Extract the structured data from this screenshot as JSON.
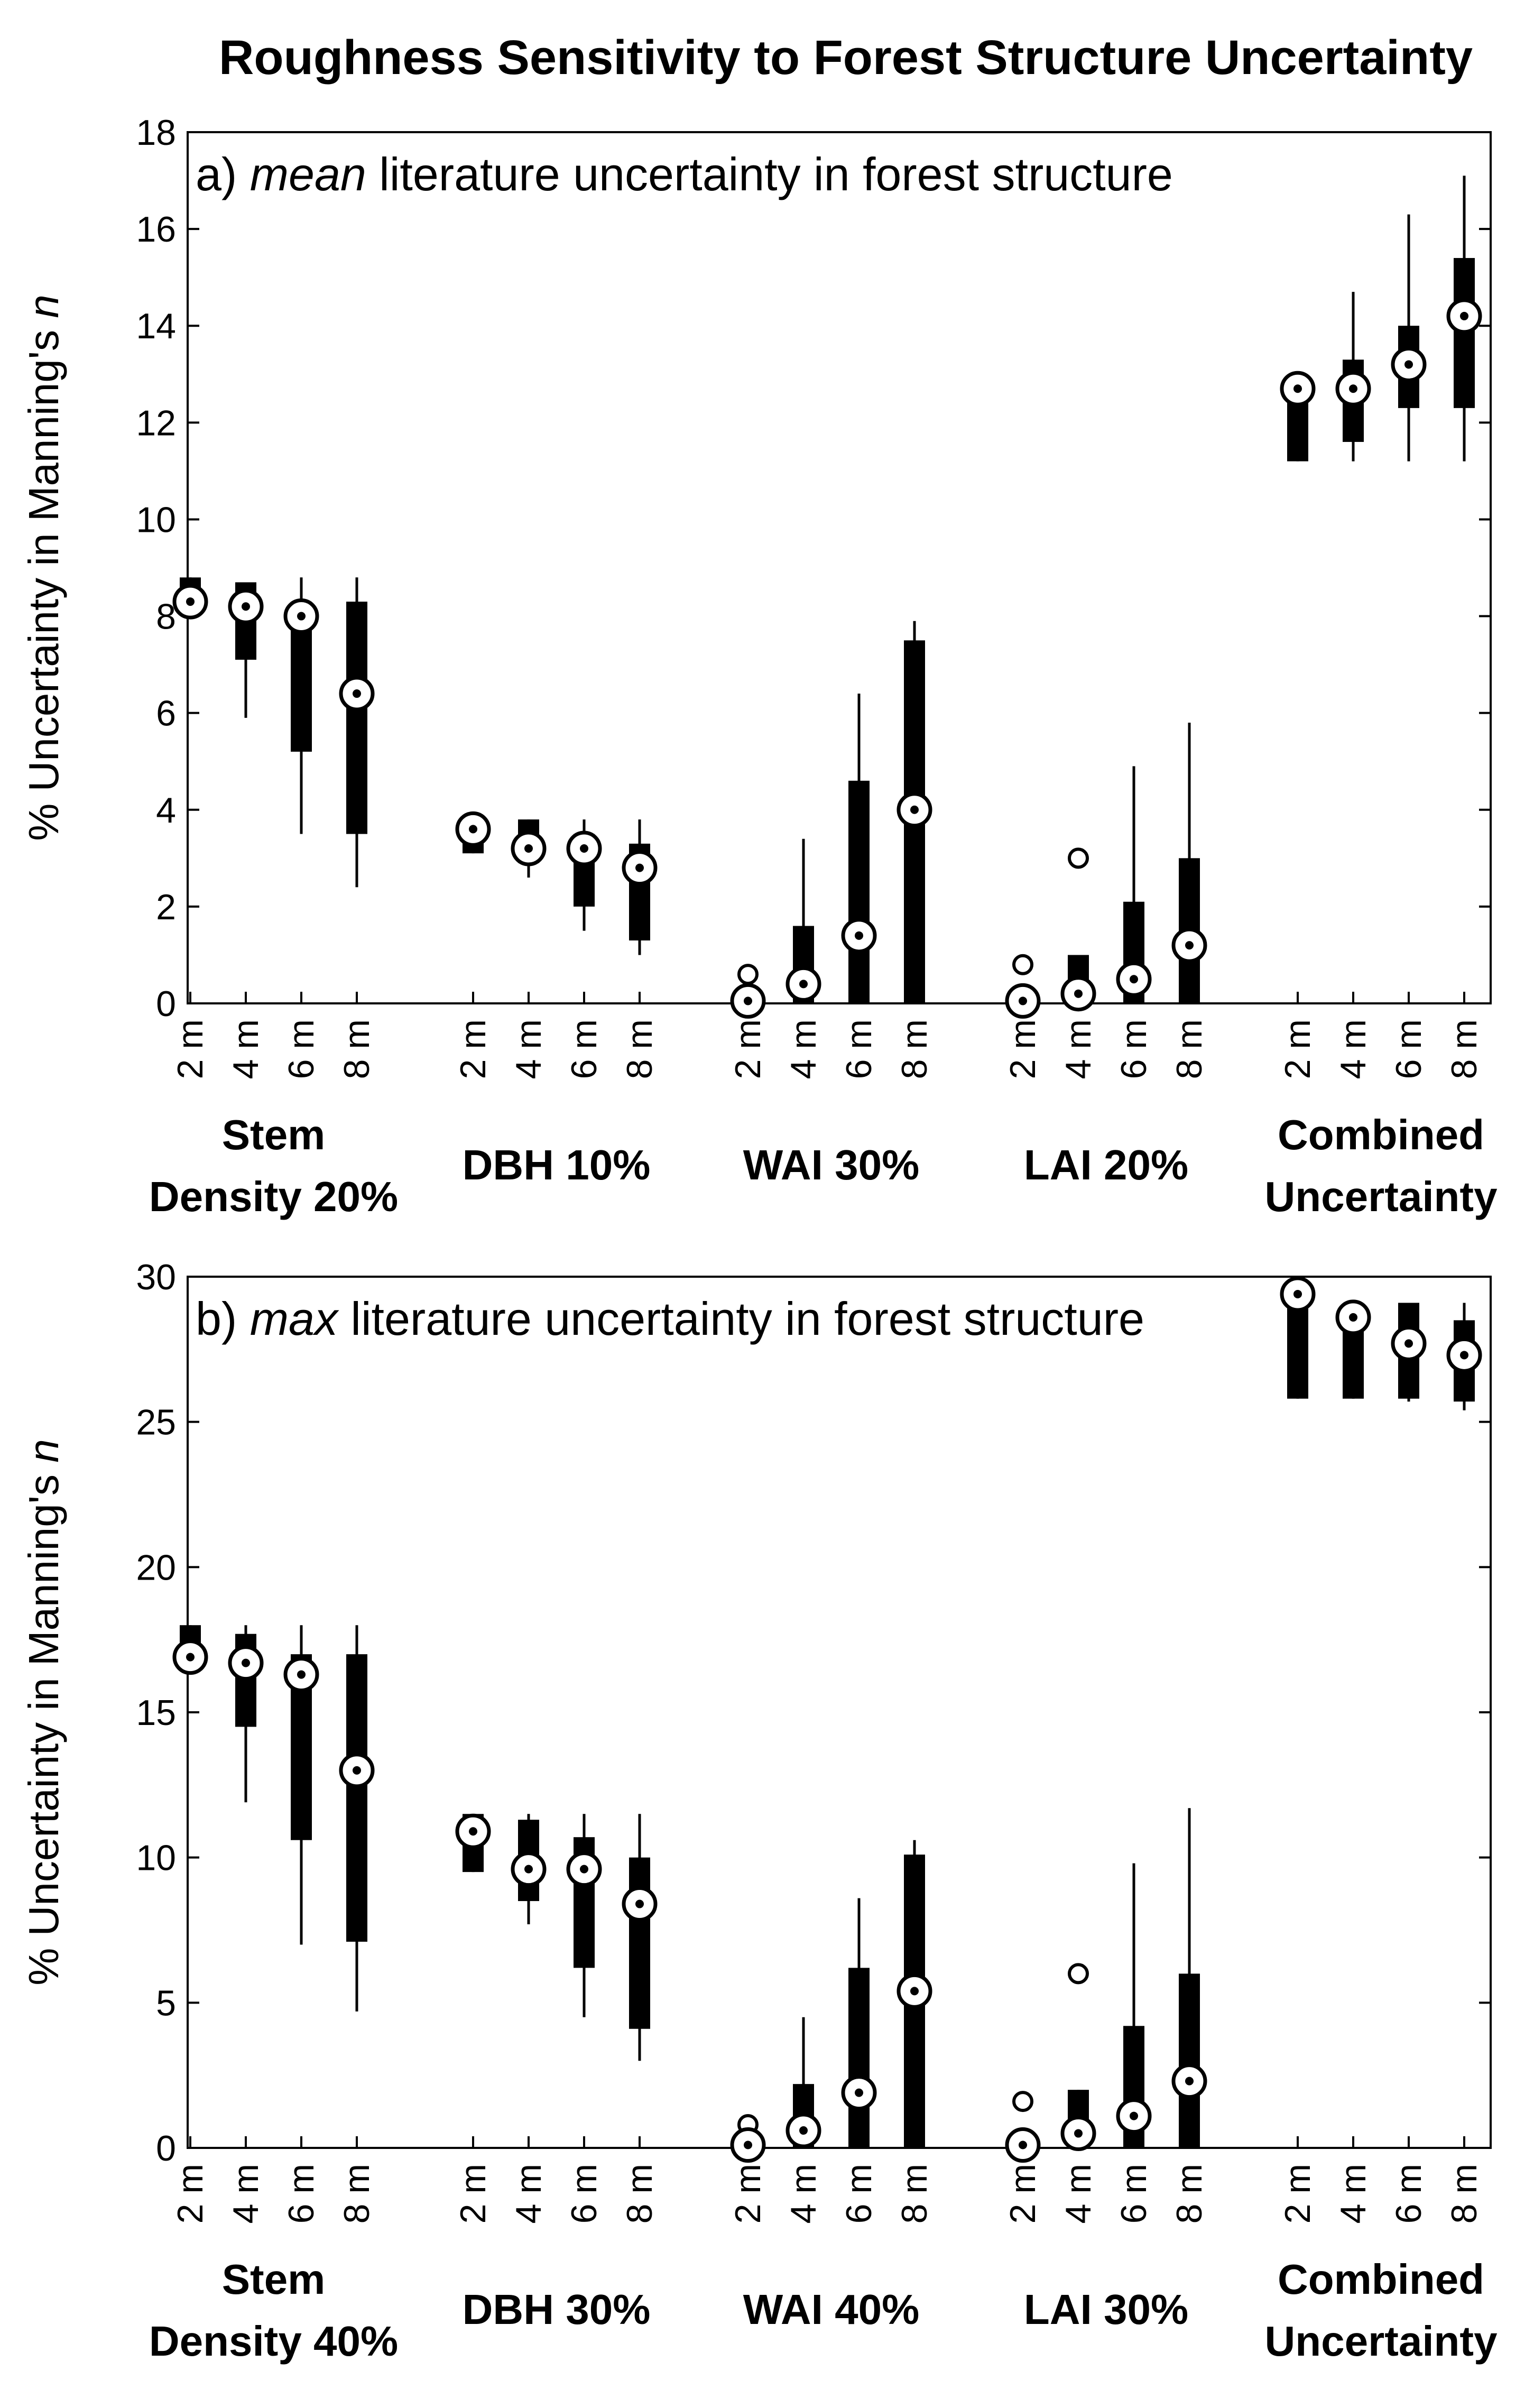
{
  "title": "Roughness Sensitivity to Forest Structure Uncertainty",
  "chart_data": [
    {
      "type": "boxplot",
      "panel_prefix": "a)",
      "panel_emph": "mean",
      "panel_rest": "literature uncertainty in forest structure",
      "ylabel_main": "% Uncertainty in Manning's",
      "ylabel_var": "n",
      "ylim": [
        0,
        18
      ],
      "yticks": [
        0,
        2,
        4,
        6,
        8,
        10,
        12,
        14,
        16,
        18
      ],
      "groups": [
        {
          "name": "Stem",
          "name2": "Density 20%"
        },
        {
          "name": "DBH 10%",
          "name2": ""
        },
        {
          "name": "WAI 30%",
          "name2": ""
        },
        {
          "name": "LAI 20%",
          "name2": ""
        },
        {
          "name": "Combined",
          "name2": "Uncertainty"
        }
      ],
      "categories": [
        "2 m",
        "4 m",
        "6 m",
        "8 m"
      ],
      "boxes": [
        [
          {
            "low": 8.3,
            "q1": 8.3,
            "med": 8.3,
            "q3": 8.8,
            "high": 8.8
          },
          {
            "low": 5.9,
            "q1": 7.1,
            "med": 8.2,
            "q3": 8.7,
            "high": 8.7
          },
          {
            "low": 3.5,
            "q1": 5.2,
            "med": 8.0,
            "q3": 8.3,
            "high": 8.8
          },
          {
            "low": 2.4,
            "q1": 3.5,
            "med": 6.4,
            "q3": 8.3,
            "high": 8.8
          }
        ],
        [
          {
            "low": 3.1,
            "q1": 3.1,
            "med": 3.6,
            "q3": 3.6,
            "high": 3.6
          },
          {
            "low": 2.6,
            "q1": 2.9,
            "med": 3.2,
            "q3": 3.8,
            "high": 3.8
          },
          {
            "low": 1.5,
            "q1": 2.0,
            "med": 3.2,
            "q3": 3.5,
            "high": 3.8
          },
          {
            "low": 1.0,
            "q1": 1.3,
            "med": 2.8,
            "q3": 3.3,
            "high": 3.8
          }
        ],
        [
          {
            "low": 0.0,
            "q1": 0.0,
            "med": 0.05,
            "q3": 0.05,
            "high": 0.05,
            "outliers": [
              0.6
            ]
          },
          {
            "low": 0.0,
            "q1": 0.0,
            "med": 0.4,
            "q3": 1.6,
            "high": 3.4
          },
          {
            "low": 0.0,
            "q1": 0.0,
            "med": 1.4,
            "q3": 4.6,
            "high": 6.4
          },
          {
            "low": 0.0,
            "q1": 0.0,
            "med": 4.0,
            "q3": 7.5,
            "high": 7.9
          }
        ],
        [
          {
            "low": 0.0,
            "q1": 0.0,
            "med": 0.05,
            "q3": 0.05,
            "high": 0.05,
            "outliers": [
              0.8
            ]
          },
          {
            "low": 0.0,
            "q1": 0.0,
            "med": 0.2,
            "q3": 1.0,
            "high": 1.0,
            "outliers": [
              3.0
            ]
          },
          {
            "low": 0.0,
            "q1": 0.0,
            "med": 0.5,
            "q3": 2.1,
            "high": 4.9
          },
          {
            "low": 0.0,
            "q1": 0.0,
            "med": 1.2,
            "q3": 3.0,
            "high": 5.8
          }
        ],
        [
          {
            "low": 11.2,
            "q1": 11.2,
            "med": 12.7,
            "q3": 12.7,
            "high": 12.7
          },
          {
            "low": 11.2,
            "q1": 11.6,
            "med": 12.7,
            "q3": 13.3,
            "high": 14.7
          },
          {
            "low": 11.2,
            "q1": 12.3,
            "med": 13.2,
            "q3": 14.0,
            "high": 16.3
          },
          {
            "low": 11.2,
            "q1": 12.3,
            "med": 14.2,
            "q3": 15.4,
            "high": 17.1
          }
        ]
      ]
    },
    {
      "type": "boxplot",
      "panel_prefix": "b)",
      "panel_emph": "max",
      "panel_rest": "literature uncertainty in forest structure",
      "ylabel_main": "% Uncertainty in Manning's",
      "ylabel_var": "n",
      "ylim": [
        0,
        30
      ],
      "yticks": [
        0,
        5,
        10,
        15,
        20,
        25,
        30
      ],
      "groups": [
        {
          "name": "Stem",
          "name2": "Density 40%"
        },
        {
          "name": "DBH 30%",
          "name2": ""
        },
        {
          "name": "WAI 40%",
          "name2": ""
        },
        {
          "name": "LAI 30%",
          "name2": ""
        },
        {
          "name": "Combined",
          "name2": "Uncertainty"
        }
      ],
      "categories": [
        "2 m",
        "4 m",
        "6 m",
        "8 m"
      ],
      "boxes": [
        [
          {
            "low": 16.9,
            "q1": 16.9,
            "med": 16.9,
            "q3": 18.0,
            "high": 18.0
          },
          {
            "low": 11.9,
            "q1": 14.5,
            "med": 16.7,
            "q3": 17.7,
            "high": 18.0
          },
          {
            "low": 7.0,
            "q1": 10.6,
            "med": 16.3,
            "q3": 17.0,
            "high": 18.0
          },
          {
            "low": 4.7,
            "q1": 7.1,
            "med": 13.0,
            "q3": 17.0,
            "high": 18.0
          }
        ],
        [
          {
            "low": 9.5,
            "q1": 9.5,
            "med": 10.9,
            "q3": 11.5,
            "high": 11.5
          },
          {
            "low": 7.7,
            "q1": 8.5,
            "med": 9.6,
            "q3": 11.3,
            "high": 11.5
          },
          {
            "low": 4.5,
            "q1": 6.2,
            "med": 9.6,
            "q3": 10.7,
            "high": 11.5
          },
          {
            "low": 3.0,
            "q1": 4.1,
            "med": 8.4,
            "q3": 10.0,
            "high": 11.5
          }
        ],
        [
          {
            "low": 0.0,
            "q1": 0.0,
            "med": 0.1,
            "q3": 0.1,
            "high": 0.1,
            "outliers": [
              0.8
            ]
          },
          {
            "low": 0.0,
            "q1": 0.0,
            "med": 0.6,
            "q3": 2.2,
            "high": 4.5
          },
          {
            "low": 0.0,
            "q1": 0.0,
            "med": 1.9,
            "q3": 6.2,
            "high": 8.6
          },
          {
            "low": 0.0,
            "q1": 0.0,
            "med": 5.4,
            "q3": 10.1,
            "high": 10.6
          }
        ],
        [
          {
            "low": 0.0,
            "q1": 0.0,
            "med": 0.1,
            "q3": 0.1,
            "high": 0.1,
            "outliers": [
              1.6
            ]
          },
          {
            "low": 0.0,
            "q1": 0.0,
            "med": 0.5,
            "q3": 2.0,
            "high": 2.0,
            "outliers": [
              6.0
            ]
          },
          {
            "low": 0.0,
            "q1": 0.0,
            "med": 1.1,
            "q3": 4.2,
            "high": 9.8
          },
          {
            "low": 0.0,
            "q1": 0.0,
            "med": 2.3,
            "q3": 6.0,
            "high": 11.7
          }
        ],
        [
          {
            "low": 25.8,
            "q1": 25.8,
            "med": 29.4,
            "q3": 29.4,
            "high": 29.4
          },
          {
            "low": 25.8,
            "q1": 25.8,
            "med": 28.6,
            "q3": 29.0,
            "high": 29.0
          },
          {
            "low": 25.7,
            "q1": 25.8,
            "med": 27.7,
            "q3": 29.1,
            "high": 29.1
          },
          {
            "low": 25.4,
            "q1": 25.7,
            "med": 27.3,
            "q3": 28.5,
            "high": 29.1
          }
        ]
      ]
    }
  ]
}
